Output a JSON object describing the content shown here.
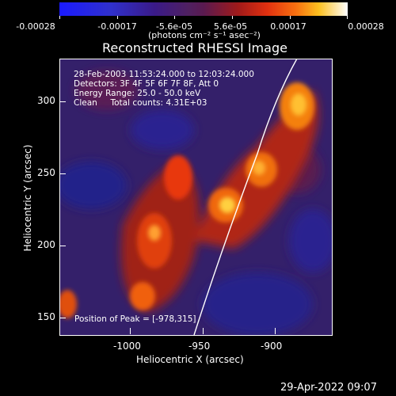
{
  "colorbar": {
    "ticks": [
      "-0.00028",
      "-0.00017",
      "-5.6e-05",
      "5.6e-05",
      "0.00017",
      "0.00028"
    ],
    "unit_label": "(photons cm⁻² s⁻¹ asec⁻²)"
  },
  "plot": {
    "title": "Reconstructed RHESSI Image",
    "xlabel": "Heliocentric X (arcsec)",
    "ylabel": "Heliocentric Y (arcsec)",
    "x_ticks": [
      "-1000",
      "-950",
      "-900"
    ],
    "y_ticks": [
      "300",
      "250",
      "200",
      "150"
    ],
    "annotations": {
      "time": "28-Feb-2003 11:53:24.000 to 12:03:24.000",
      "detectors": "Detectors: 3F 4F 5F 6F 7F 8F, Att 0",
      "energy": "Energy Range: 25.0 - 50.0 keV",
      "clean": "Clean     Total counts: 4.31E+03",
      "peak": "Position of Peak = [-978,315]"
    }
  },
  "footer": {
    "timestamp": "29-Apr-2022 09:07"
  }
}
